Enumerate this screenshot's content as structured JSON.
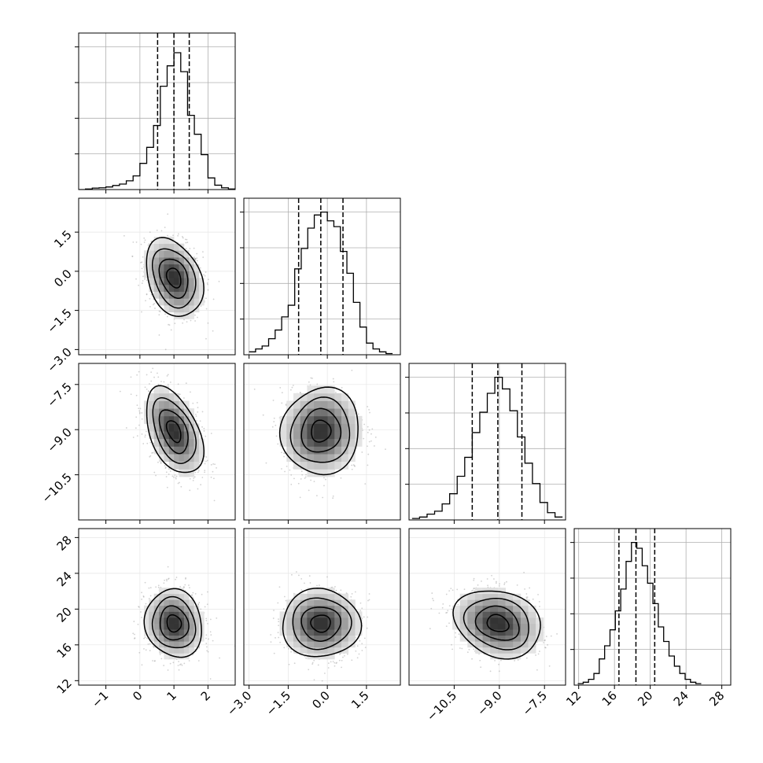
{
  "chart_data": {
    "type": "corner",
    "axes": [
      {
        "range": [
          -1.8,
          2.8
        ],
        "ticks": [
          -1,
          0,
          1,
          2
        ],
        "tick_labels": [
          "−1",
          "0",
          "1",
          "2"
        ]
      },
      {
        "range": [
          -3.2,
          2.8
        ],
        "ticks": [
          -3.0,
          -1.5,
          0.0,
          1.5
        ],
        "tick_labels": [
          "−3.0",
          "−1.5",
          "0.0",
          "1.5"
        ]
      },
      {
        "range": [
          -12.0,
          -6.8
        ],
        "ticks": [
          -10.5,
          -9.0,
          -7.5
        ],
        "tick_labels": [
          "−10.5",
          "−9.0",
          "−7.5"
        ]
      },
      {
        "range": [
          11.5,
          29.0
        ],
        "ticks": [
          12,
          16,
          20,
          24,
          28
        ],
        "tick_labels": [
          "12",
          "16",
          "20",
          "24",
          "28"
        ]
      }
    ],
    "histograms": [
      {
        "quantiles": [
          0.52,
          1.0,
          1.45
        ],
        "bins": [
          [
            -1.8,
            0
          ],
          [
            -1.6,
            0.004
          ],
          [
            -1.4,
            0.01
          ],
          [
            -1.2,
            0.012
          ],
          [
            -1.0,
            0.018
          ],
          [
            -0.8,
            0.028
          ],
          [
            -0.6,
            0.038
          ],
          [
            -0.4,
            0.06
          ],
          [
            -0.2,
            0.094
          ],
          [
            0,
            0.18
          ],
          [
            0.2,
            0.29
          ],
          [
            0.4,
            0.44
          ],
          [
            0.6,
            0.71
          ],
          [
            0.8,
            0.85
          ],
          [
            1.0,
            0.94
          ],
          [
            1.2,
            0.81
          ],
          [
            1.4,
            0.51
          ],
          [
            1.6,
            0.38
          ],
          [
            1.8,
            0.24
          ],
          [
            2.0,
            0.08
          ],
          [
            2.2,
            0.03
          ],
          [
            2.4,
            0.012
          ],
          [
            2.6,
            0.004
          ]
        ]
      },
      {
        "quantiles": [
          -1.1,
          -0.25,
          0.6
        ],
        "bins": [
          [
            -3.0,
            0.02
          ],
          [
            -2.75,
            0.04
          ],
          [
            -2.5,
            0.06
          ],
          [
            -2.25,
            0.11
          ],
          [
            -2.0,
            0.17
          ],
          [
            -1.75,
            0.26
          ],
          [
            -1.5,
            0.34
          ],
          [
            -1.25,
            0.59
          ],
          [
            -1.0,
            0.73
          ],
          [
            -0.75,
            0.87
          ],
          [
            -0.5,
            0.96
          ],
          [
            -0.25,
            0.98
          ],
          [
            0.0,
            0.92
          ],
          [
            0.25,
            0.88
          ],
          [
            0.5,
            0.71
          ],
          [
            0.75,
            0.56
          ],
          [
            1.0,
            0.36
          ],
          [
            1.25,
            0.19
          ],
          [
            1.5,
            0.08
          ],
          [
            1.75,
            0.04
          ],
          [
            2.0,
            0.02
          ],
          [
            2.25,
            0.008
          ]
        ]
      },
      {
        "quantiles": [
          -9.9,
          -9.05,
          -8.25
        ],
        "bins": [
          [
            -11.9,
            0.01
          ],
          [
            -11.65,
            0.02
          ],
          [
            -11.4,
            0.04
          ],
          [
            -11.15,
            0.06
          ],
          [
            -10.9,
            0.11
          ],
          [
            -10.65,
            0.18
          ],
          [
            -10.4,
            0.3
          ],
          [
            -10.15,
            0.43
          ],
          [
            -9.9,
            0.6
          ],
          [
            -9.65,
            0.74
          ],
          [
            -9.4,
            0.87
          ],
          [
            -9.15,
            0.98
          ],
          [
            -8.9,
            0.9
          ],
          [
            -8.65,
            0.75
          ],
          [
            -8.4,
            0.57
          ],
          [
            -8.15,
            0.39
          ],
          [
            -7.9,
            0.25
          ],
          [
            -7.65,
            0.12
          ],
          [
            -7.4,
            0.05
          ],
          [
            -7.15,
            0.02
          ]
        ]
      },
      {
        "quantiles": [
          16.5,
          18.4,
          20.5
        ],
        "bins": [
          [
            11.9,
            0.01
          ],
          [
            12.5,
            0.02
          ],
          [
            13.1,
            0.04
          ],
          [
            13.7,
            0.08
          ],
          [
            14.3,
            0.18
          ],
          [
            14.9,
            0.27
          ],
          [
            15.5,
            0.38
          ],
          [
            16.1,
            0.51
          ],
          [
            16.7,
            0.66
          ],
          [
            17.3,
            0.85
          ],
          [
            17.9,
            0.98
          ],
          [
            18.5,
            0.94
          ],
          [
            19.1,
            0.82
          ],
          [
            19.7,
            0.7
          ],
          [
            20.3,
            0.56
          ],
          [
            20.9,
            0.4
          ],
          [
            21.5,
            0.3
          ],
          [
            22.1,
            0.2
          ],
          [
            22.7,
            0.13
          ],
          [
            23.3,
            0.08
          ],
          [
            23.9,
            0.04
          ],
          [
            24.5,
            0.02
          ],
          [
            25.1,
            0.01
          ]
        ]
      }
    ],
    "params": {
      "means": [
        1.0,
        -0.25,
        -9.05,
        18.4
      ],
      "sds": [
        0.42,
        0.75,
        0.72,
        1.9
      ],
      "corr": [
        [
          1,
          -0.3,
          -0.45,
          -0.1
        ],
        [
          -0.3,
          1,
          0.05,
          0.0
        ],
        [
          -0.45,
          0.05,
          1,
          -0.2
        ],
        [
          -0.1,
          0.0,
          -0.2,
          1
        ]
      ]
    },
    "contour_levels_sigma": [
      0.5,
      1.0,
      1.5,
      2.0
    ],
    "grid": true,
    "colors": {
      "line": "#000000",
      "grid": "#b0b0b0",
      "scatter": "#9a9a9a"
    }
  }
}
